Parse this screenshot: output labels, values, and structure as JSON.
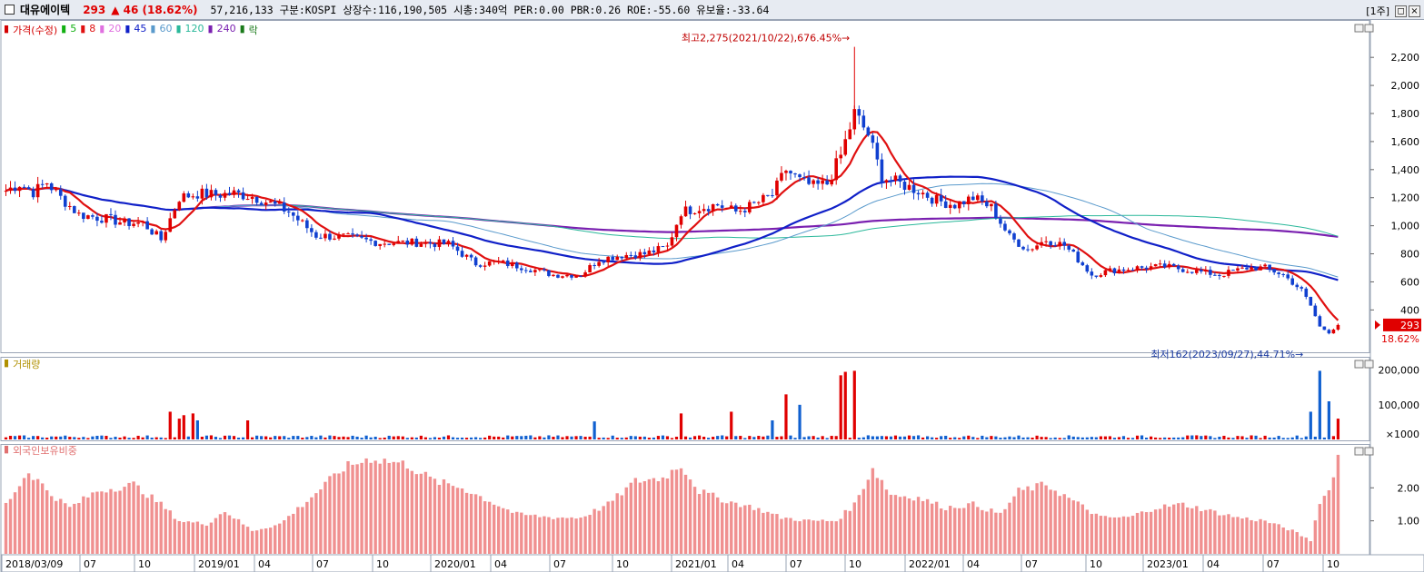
{
  "header": {
    "name": "대유에이텍",
    "price": "293",
    "change": "▲ 46 (18.62%)",
    "info": "57,216,133  구분:KOSPI 상장수:116,190,505 시총:340억 PER:0.00 PBR:0.26 ROE:-55.60 유보율:-33.64",
    "period": "[1주]",
    "btn_restore": "◻",
    "btn_close": "×"
  },
  "legend_price": [
    {
      "marker": "▮",
      "label": "가격(수정)",
      "color": "#d40000"
    },
    {
      "marker": "▮",
      "label": "5",
      "color": "#12b012"
    },
    {
      "marker": "▮",
      "label": "8",
      "color": "#e01010"
    },
    {
      "marker": "▮",
      "label": "20",
      "color": "#e070e0"
    },
    {
      "marker": "▮",
      "label": "45",
      "color": "#1020c8"
    },
    {
      "marker": "▮",
      "label": "60",
      "color": "#5a9acc"
    },
    {
      "marker": "▮",
      "label": "120",
      "color": "#2ab89a"
    },
    {
      "marker": "▮",
      "label": "240",
      "color": "#7a20b0"
    },
    {
      "marker": "▮",
      "label": "락",
      "color": "#1a7a1a"
    }
  ],
  "legend_volume": {
    "marker": "▮",
    "label": "거래량",
    "color": "#b09000"
  },
  "legend_foreign": {
    "marker": "▮",
    "label": "외국인보유비중",
    "color": "#e07070"
  },
  "panel_buttons": {
    "min": "−",
    "close": "×"
  },
  "chart_data": [
    {
      "type": "candlestick",
      "title": "",
      "ylim": [
        150,
        2350
      ],
      "y_ticks": [
        "2,200",
        "2,000",
        "1,800",
        "1,600",
        "1,400",
        "1,200",
        "1,000",
        "800",
        "600",
        "400"
      ],
      "y_tick_values": [
        2200,
        2000,
        1800,
        1600,
        1400,
        1200,
        1000,
        800,
        600,
        400
      ],
      "x_ticks": [
        "2018/03/09",
        "07",
        "10",
        "2019/01",
        "04",
        "07",
        "10",
        "2020/01",
        "04",
        "07",
        "10",
        "2021/01",
        "04",
        "07",
        "10",
        "2022/01",
        "04",
        "07",
        "10",
        "2023/01",
        "04",
        "07",
        "10"
      ],
      "annotations": [
        {
          "text": "최고2,275(2021/10/22),676.45%→",
          "value": 2275
        },
        {
          "text": "최저162(2023/09/27),44.71%→",
          "value": 162
        }
      ],
      "current": {
        "price_label": "293",
        "pct_label": "18.62%",
        "value": 293
      },
      "close_path": [
        [
          0,
          1250
        ],
        [
          3,
          1300
        ],
        [
          6,
          1240
        ],
        [
          9,
          1310
        ],
        [
          12,
          1200
        ],
        [
          16,
          1080
        ],
        [
          22,
          1050
        ],
        [
          26,
          1020
        ],
        [
          30,
          1020
        ],
        [
          34,
          900
        ],
        [
          38,
          1200
        ],
        [
          42,
          1230
        ],
        [
          46,
          1220
        ],
        [
          50,
          1230
        ],
        [
          54,
          1210
        ],
        [
          58,
          1160
        ],
        [
          62,
          1100
        ],
        [
          68,
          930
        ],
        [
          74,
          920
        ],
        [
          82,
          880
        ],
        [
          90,
          880
        ],
        [
          97,
          870
        ],
        [
          100,
          800
        ],
        [
          103,
          730
        ],
        [
          108,
          740
        ],
        [
          114,
          700
        ],
        [
          120,
          650
        ],
        [
          126,
          650
        ],
        [
          130,
          760
        ],
        [
          135,
          790
        ],
        [
          140,
          800
        ],
        [
          145,
          850
        ],
        [
          148,
          1100
        ],
        [
          152,
          1130
        ],
        [
          156,
          1150
        ],
        [
          160,
          1100
        ],
        [
          164,
          1150
        ],
        [
          168,
          1220
        ],
        [
          171,
          1400
        ],
        [
          174,
          1320
        ],
        [
          177,
          1280
        ],
        [
          180,
          1300
        ],
        [
          183,
          1500
        ],
        [
          186,
          1800
        ],
        [
          189,
          1650
        ],
        [
          192,
          1350
        ],
        [
          196,
          1300
        ],
        [
          200,
          1250
        ],
        [
          204,
          1180
        ],
        [
          208,
          1150
        ],
        [
          212,
          1200
        ],
        [
          216,
          1130
        ],
        [
          220,
          920
        ],
        [
          224,
          830
        ],
        [
          228,
          900
        ],
        [
          232,
          860
        ],
        [
          235,
          760
        ],
        [
          238,
          650
        ],
        [
          242,
          680
        ],
        [
          248,
          700
        ],
        [
          254,
          710
        ],
        [
          260,
          680
        ],
        [
          266,
          650
        ],
        [
          272,
          700
        ],
        [
          276,
          700
        ],
        [
          280,
          650
        ],
        [
          284,
          540
        ],
        [
          286,
          430
        ],
        [
          288,
          280
        ],
        [
          290,
          240
        ],
        [
          292,
          293
        ]
      ],
      "ma_series": [
        {
          "name": "8",
          "color": "#e01010",
          "period": 8
        },
        {
          "name": "45",
          "color": "#1020c8",
          "period": 45
        },
        {
          "name": "60",
          "color": "#5a9acc",
          "period": 60
        },
        {
          "name": "120",
          "color": "#2ab89a",
          "period": 120
        },
        {
          "name": "240",
          "color": "#7a20b0",
          "period": 240
        }
      ]
    },
    {
      "type": "bar",
      "title": "",
      "y_ticks": [
        "200,000",
        "100,000",
        "×1000"
      ],
      "y_tick_values": [
        200000,
        100000,
        0
      ],
      "ylim": [
        0,
        220000
      ],
      "spikes": [
        [
          36,
          80000
        ],
        [
          38,
          60000
        ],
        [
          39,
          70000
        ],
        [
          41,
          75000
        ],
        [
          42,
          55000
        ],
        [
          53,
          55000
        ],
        [
          129,
          52000
        ],
        [
          148,
          75000
        ],
        [
          159,
          80000
        ],
        [
          168,
          55000
        ],
        [
          171,
          130000
        ],
        [
          174,
          100000
        ],
        [
          183,
          185000
        ],
        [
          184,
          195000
        ],
        [
          186,
          198000
        ],
        [
          288,
          198000
        ],
        [
          290,
          110000
        ],
        [
          292,
          60000
        ],
        [
          286,
          80000
        ]
      ]
    },
    {
      "type": "bar",
      "title": "",
      "y_ticks": [
        "2.00",
        "1.00"
      ],
      "y_tick_values": [
        2.0,
        1.0
      ],
      "ylim": [
        0,
        3.3
      ],
      "profile": [
        [
          0,
          1.5
        ],
        [
          5,
          2.5
        ],
        [
          10,
          1.8
        ],
        [
          14,
          1.4
        ],
        [
          20,
          1.9
        ],
        [
          28,
          2.1
        ],
        [
          34,
          1.5
        ],
        [
          38,
          1.0
        ],
        [
          44,
          0.9
        ],
        [
          48,
          1.3
        ],
        [
          54,
          0.7
        ],
        [
          60,
          0.9
        ],
        [
          66,
          1.6
        ],
        [
          74,
          2.6
        ],
        [
          80,
          2.9
        ],
        [
          88,
          2.7
        ],
        [
          94,
          2.2
        ],
        [
          100,
          2.0
        ],
        [
          106,
          1.6
        ],
        [
          112,
          1.2
        ],
        [
          120,
          1.1
        ],
        [
          126,
          1.1
        ],
        [
          132,
          1.5
        ],
        [
          138,
          2.2
        ],
        [
          144,
          2.3
        ],
        [
          148,
          2.7
        ],
        [
          152,
          1.9
        ],
        [
          158,
          1.6
        ],
        [
          164,
          1.4
        ],
        [
          170,
          1.1
        ],
        [
          176,
          1.0
        ],
        [
          182,
          1.0
        ],
        [
          186,
          1.5
        ],
        [
          190,
          2.6
        ],
        [
          194,
          1.8
        ],
        [
          200,
          1.7
        ],
        [
          206,
          1.4
        ],
        [
          212,
          1.5
        ],
        [
          218,
          1.2
        ],
        [
          222,
          1.9
        ],
        [
          228,
          2.1
        ],
        [
          234,
          1.6
        ],
        [
          240,
          1.1
        ],
        [
          246,
          1.1
        ],
        [
          252,
          1.4
        ],
        [
          258,
          1.5
        ],
        [
          264,
          1.3
        ],
        [
          270,
          1.1
        ],
        [
          276,
          1.0
        ],
        [
          282,
          0.7
        ],
        [
          286,
          0.4
        ],
        [
          288,
          1.6
        ],
        [
          290,
          1.9
        ],
        [
          292,
          3.0
        ]
      ]
    }
  ]
}
